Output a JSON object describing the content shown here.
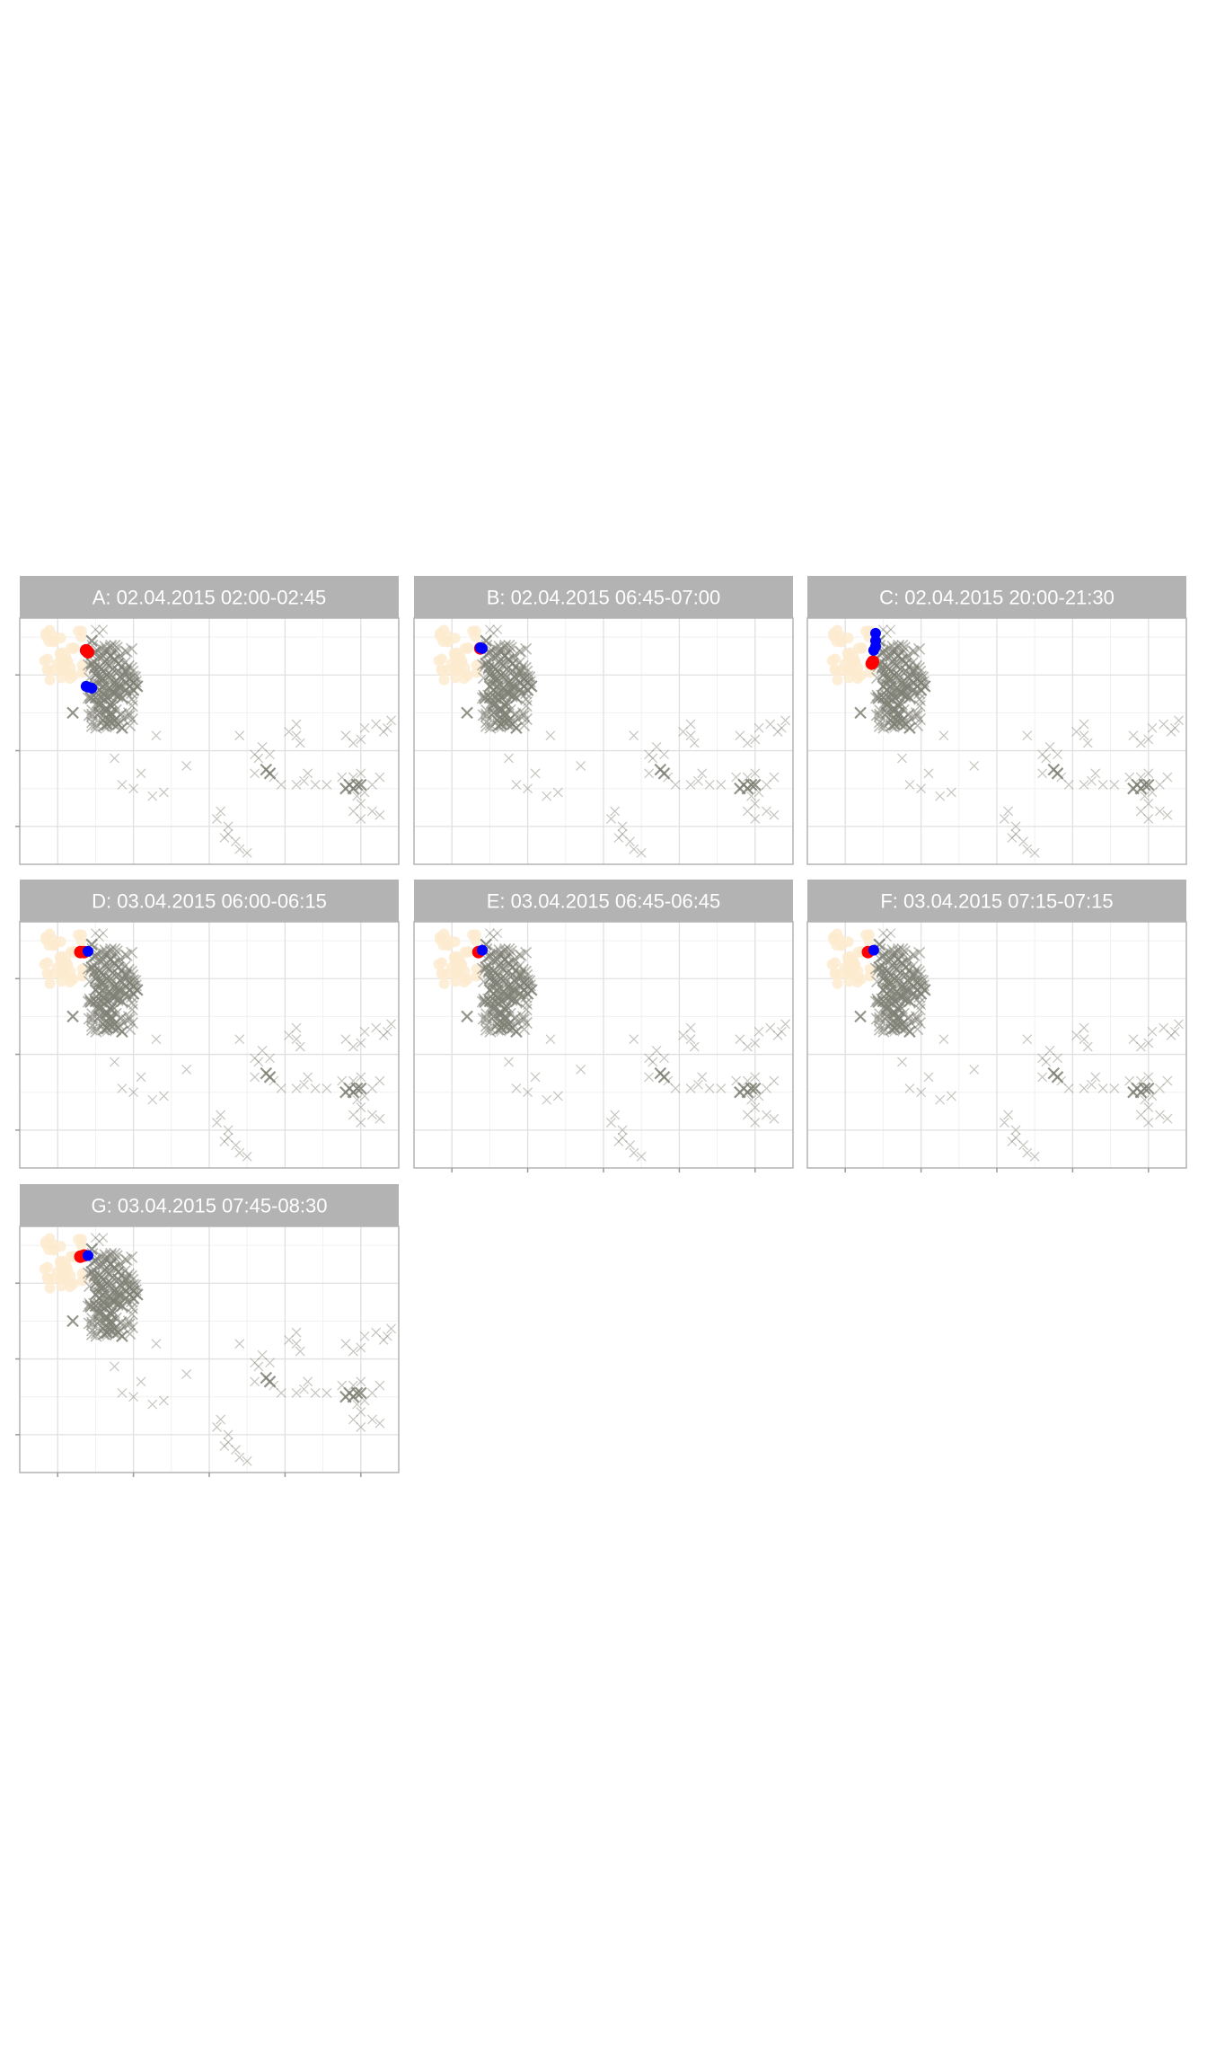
{
  "colors": {
    "strip_bg": "#b3b3b3",
    "strip_text": "#ffffff",
    "panel_border": "#b3b3b3",
    "grid_major": "#e0e0e0",
    "grid_minor": "#f1f1f1",
    "axis_tick": "#999999",
    "cross": "#7f8074",
    "cream": "#fdebd0",
    "red_point": "#ff0000",
    "blue_point": "#0000ff"
  },
  "chart_data": {
    "type": "scatter",
    "layout": "facet_wrap",
    "ncol": 3,
    "title": "",
    "xlabel": "",
    "ylabel": "",
    "xlim": [
      0,
      100
    ],
    "ylim": [
      0,
      65
    ],
    "grid": true,
    "x_major_breaks": [
      10,
      30,
      50,
      70,
      90
    ],
    "y_major_breaks": [
      10,
      30,
      50
    ],
    "panels": [
      {
        "label": "A: 02.04.2015 02:00-02:45",
        "red": [
          [
            18,
            56
          ],
          [
            17.5,
            56.5
          ]
        ],
        "blue": [
          [
            17.5,
            47
          ],
          [
            19,
            46.5
          ],
          [
            18,
            46.8
          ]
        ]
      },
      {
        "label": "B: 02.04.2015 06:45-07:00",
        "red": [
          [
            17.5,
            57
          ]
        ],
        "blue": [
          [
            18,
            57
          ],
          [
            17.5,
            57.2
          ]
        ]
      },
      {
        "label": "C: 02.04.2015 20:00-21:30",
        "red": [
          [
            17,
            53
          ],
          [
            17.3,
            53.5
          ]
        ],
        "blue": [
          [
            18,
            61
          ],
          [
            18,
            59
          ],
          [
            18,
            57.5
          ],
          [
            17.5,
            56.5
          ]
        ]
      },
      {
        "label": "D: 03.04.2015 06:00-06:15",
        "red": [
          [
            16,
            57
          ],
          [
            17,
            57
          ]
        ],
        "blue": [
          [
            18,
            57.2
          ]
        ]
      },
      {
        "label": "E: 03.04.2015 06:45-06:45",
        "red": [
          [
            17,
            57
          ]
        ],
        "blue": [
          [
            18,
            57.5
          ]
        ]
      },
      {
        "label": "F: 03.04.2015 07:15-07:15",
        "red": [
          [
            16,
            57
          ]
        ],
        "blue": [
          [
            17.5,
            57.5
          ]
        ]
      },
      {
        "label": "G: 03.04.2015 07:45-08:30",
        "red": [
          [
            16,
            57
          ],
          [
            17,
            57.3
          ]
        ],
        "blue": [
          [
            18,
            57.3
          ]
        ]
      }
    ],
    "background_crosses": {
      "light": [
        [
          25,
          57
        ],
        [
          24,
          52
        ],
        [
          25,
          48
        ],
        [
          26,
          44
        ],
        [
          22,
          40
        ],
        [
          23,
          36
        ],
        [
          20,
          42
        ],
        [
          30,
          43
        ],
        [
          25,
          28
        ],
        [
          36,
          34
        ],
        [
          44,
          26
        ],
        [
          32,
          24
        ],
        [
          27,
          21
        ],
        [
          30,
          20
        ],
        [
          38,
          19
        ],
        [
          35,
          18
        ],
        [
          58,
          34
        ],
        [
          64,
          31
        ],
        [
          62,
          29
        ],
        [
          66,
          29
        ],
        [
          71,
          35
        ],
        [
          73,
          37
        ],
        [
          73,
          34
        ],
        [
          74,
          32
        ],
        [
          63,
          28
        ],
        [
          62,
          24
        ],
        [
          67,
          23
        ],
        [
          69,
          21
        ],
        [
          73,
          21
        ],
        [
          76,
          24
        ],
        [
          75,
          22
        ],
        [
          78,
          21
        ],
        [
          81,
          21
        ],
        [
          85,
          23
        ],
        [
          88,
          23
        ],
        [
          90,
          24
        ],
        [
          95,
          23
        ],
        [
          93,
          21
        ],
        [
          91,
          19
        ],
        [
          89,
          18
        ],
        [
          90,
          16
        ],
        [
          88,
          14
        ],
        [
          90,
          12
        ],
        [
          93,
          14
        ],
        [
          95,
          13
        ],
        [
          86,
          34
        ],
        [
          88,
          32
        ],
        [
          90,
          33
        ],
        [
          91,
          36
        ],
        [
          94,
          37
        ],
        [
          96,
          35
        ],
        [
          98,
          38
        ],
        [
          97,
          36
        ],
        [
          53,
          14
        ],
        [
          52,
          12
        ],
        [
          55,
          10
        ],
        [
          55,
          8
        ],
        [
          57,
          6
        ],
        [
          54,
          7
        ],
        [
          58,
          4
        ],
        [
          60,
          3
        ],
        [
          20,
          62
        ],
        [
          21,
          61
        ],
        [
          22,
          62
        ]
      ],
      "dark": [
        [
          19,
          59
        ],
        [
          20,
          56
        ],
        [
          21,
          52
        ],
        [
          22,
          55
        ],
        [
          23,
          53
        ],
        [
          24,
          50
        ],
        [
          25,
          48
        ],
        [
          22,
          49
        ],
        [
          26,
          51
        ],
        [
          27,
          49
        ],
        [
          24,
          46
        ],
        [
          23,
          44
        ],
        [
          25,
          45
        ],
        [
          26,
          47
        ],
        [
          28,
          48
        ],
        [
          29,
          47
        ],
        [
          28,
          46
        ],
        [
          21,
          46
        ],
        [
          22,
          45
        ],
        [
          20,
          44
        ],
        [
          21,
          42
        ],
        [
          23,
          41
        ],
        [
          24,
          40
        ],
        [
          22,
          38
        ],
        [
          23,
          37
        ],
        [
          24,
          39
        ],
        [
          25,
          38
        ],
        [
          26,
          37
        ],
        [
          27,
          36
        ],
        [
          14,
          40
        ],
        [
          20,
          50
        ],
        [
          19,
          53
        ],
        [
          23,
          50
        ],
        [
          25,
          54
        ],
        [
          22,
          47
        ],
        [
          21,
          40
        ],
        [
          24,
          42
        ],
        [
          27,
          44
        ],
        [
          30,
          48
        ],
        [
          31,
          47
        ],
        [
          30,
          46
        ],
        [
          29,
          49
        ],
        [
          28,
          51
        ],
        [
          26,
          53
        ],
        [
          24,
          55
        ],
        [
          22,
          51
        ],
        [
          20,
          47
        ],
        [
          21,
          49
        ],
        [
          66,
          24
        ],
        [
          87,
          21
        ],
        [
          89,
          21
        ],
        [
          88,
          20
        ],
        [
          86,
          20
        ],
        [
          90,
          21
        ],
        [
          65,
          25
        ]
      ]
    }
  }
}
